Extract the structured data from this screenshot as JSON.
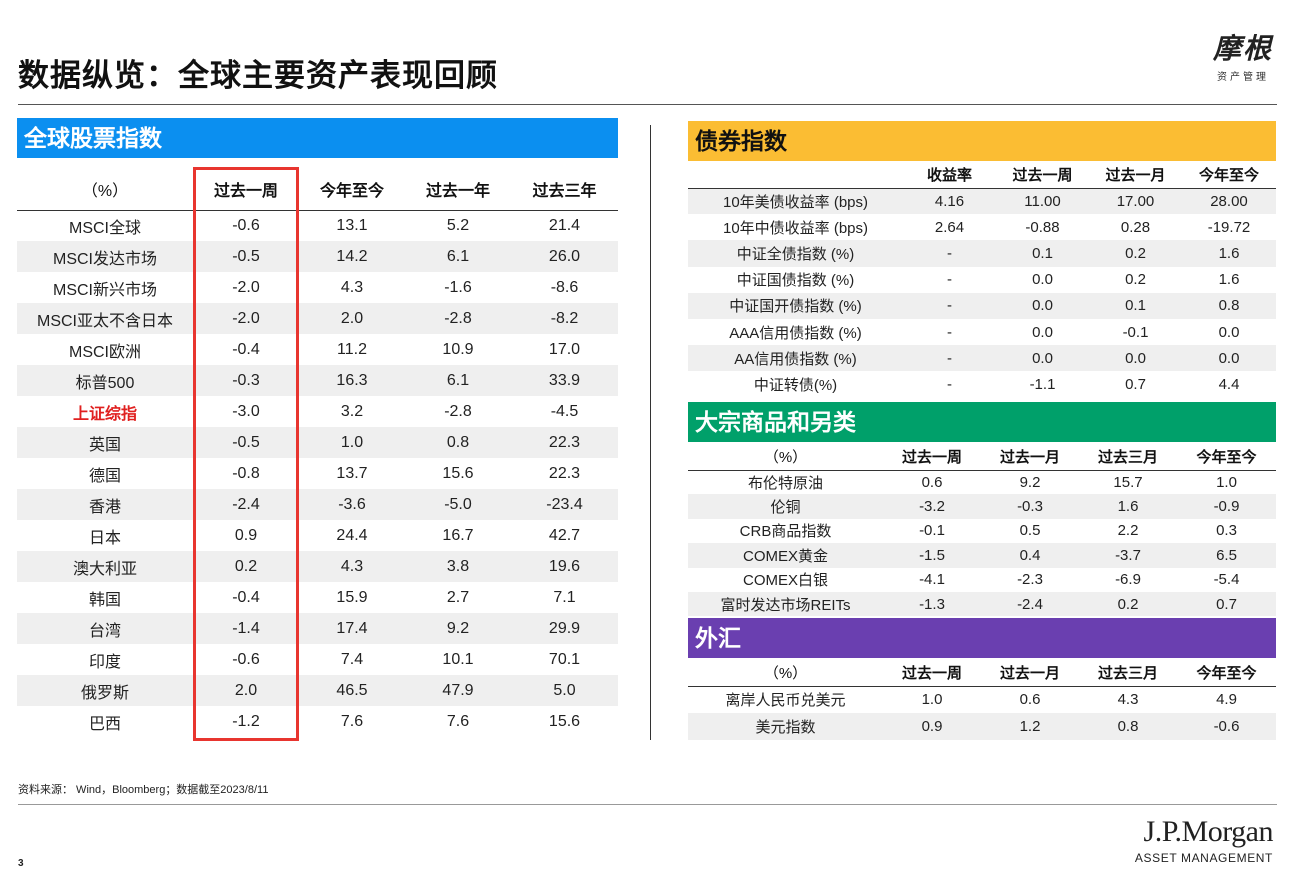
{
  "header": {
    "title": "数据纵览：全球主要资产表现回顾",
    "logo_main": "摩根",
    "logo_sub": "资产管理"
  },
  "equity": {
    "section_title": "全球股票指数",
    "columns": [
      "（%）",
      "过去一周",
      "今年至今",
      "过去一年",
      "过去三年"
    ],
    "rows": [
      {
        "name": "MSCI全球",
        "v": [
          "-0.6",
          "13.1",
          "5.2",
          "21.4"
        ]
      },
      {
        "name": "MSCI发达市场",
        "v": [
          "-0.5",
          "14.2",
          "6.1",
          "26.0"
        ]
      },
      {
        "name": "MSCI新兴市场",
        "v": [
          "-2.0",
          "4.3",
          "-1.6",
          "-8.6"
        ]
      },
      {
        "name": "MSCI亚太不含日本",
        "v": [
          "-2.0",
          "2.0",
          "-2.8",
          "-8.2"
        ]
      },
      {
        "name": "MSCI欧洲",
        "v": [
          "-0.4",
          "11.2",
          "10.9",
          "17.0"
        ]
      },
      {
        "name": "标普500",
        "v": [
          "-0.3",
          "16.3",
          "6.1",
          "33.9"
        ]
      },
      {
        "name": "上证综指",
        "v": [
          "-3.0",
          "3.2",
          "-2.8",
          "-4.5"
        ],
        "highlight": true
      },
      {
        "name": "英国",
        "v": [
          "-0.5",
          "1.0",
          "0.8",
          "22.3"
        ]
      },
      {
        "name": "德国",
        "v": [
          "-0.8",
          "13.7",
          "15.6",
          "22.3"
        ]
      },
      {
        "name": "香港",
        "v": [
          "-2.4",
          "-3.6",
          "-5.0",
          "-23.4"
        ]
      },
      {
        "name": "日本",
        "v": [
          "0.9",
          "24.4",
          "16.7",
          "42.7"
        ]
      },
      {
        "name": "澳大利亚",
        "v": [
          "0.2",
          "4.3",
          "3.8",
          "19.6"
        ]
      },
      {
        "name": "韩国",
        "v": [
          "-0.4",
          "15.9",
          "2.7",
          "7.1"
        ]
      },
      {
        "name": "台湾",
        "v": [
          "-1.4",
          "17.4",
          "9.2",
          "29.9"
        ]
      },
      {
        "name": "印度",
        "v": [
          "-0.6",
          "7.4",
          "10.1",
          "70.1"
        ]
      },
      {
        "name": "俄罗斯",
        "v": [
          "2.0",
          "46.5",
          "47.9",
          "5.0"
        ]
      },
      {
        "name": "巴西",
        "v": [
          "-1.2",
          "7.6",
          "7.6",
          "15.6"
        ]
      }
    ]
  },
  "bonds": {
    "section_title": "债券指数",
    "columns": [
      "",
      "收益率",
      "过去一周",
      "过去一月",
      "今年至今"
    ],
    "rows": [
      {
        "name": "10年美债收益率 (bps)",
        "v": [
          "4.16",
          "11.00",
          "17.00",
          "28.00"
        ]
      },
      {
        "name": "10年中债收益率 (bps)",
        "v": [
          "2.64",
          "-0.88",
          "0.28",
          "-19.72"
        ]
      },
      {
        "name": "中证全债指数 (%)",
        "v": [
          "-",
          "0.1",
          "0.2",
          "1.6"
        ]
      },
      {
        "name": "中证国债指数 (%)",
        "v": [
          "-",
          "0.0",
          "0.2",
          "1.6"
        ]
      },
      {
        "name": "中证国开债指数 (%)",
        "v": [
          "-",
          "0.0",
          "0.1",
          "0.8"
        ]
      },
      {
        "name": "AAA信用债指数 (%)",
        "v": [
          "-",
          "0.0",
          "-0.1",
          "0.0"
        ]
      },
      {
        "name": "AA信用债指数 (%)",
        "v": [
          "-",
          "0.0",
          "0.0",
          "0.0"
        ]
      },
      {
        "name": "中证转债(%)",
        "v": [
          "-",
          "-1.1",
          "0.7",
          "4.4"
        ]
      }
    ]
  },
  "commodities": {
    "section_title": "大宗商品和另类",
    "columns": [
      "（%）",
      "过去一周",
      "过去一月",
      "过去三月",
      "今年至今"
    ],
    "rows": [
      {
        "name": "布伦特原油",
        "v": [
          "0.6",
          "9.2",
          "15.7",
          "1.0"
        ]
      },
      {
        "name": "伦铜",
        "v": [
          "-3.2",
          "-0.3",
          "1.6",
          "-0.9"
        ]
      },
      {
        "name": "CRB商品指数",
        "v": [
          "-0.1",
          "0.5",
          "2.2",
          "0.3"
        ]
      },
      {
        "name": "COMEX黄金",
        "v": [
          "-1.5",
          "0.4",
          "-3.7",
          "6.5"
        ]
      },
      {
        "name": "COMEX白银",
        "v": [
          "-4.1",
          "-2.3",
          "-6.9",
          "-5.4"
        ]
      },
      {
        "name": "富时发达市场REITs",
        "v": [
          "-1.3",
          "-2.4",
          "0.2",
          "0.7"
        ]
      }
    ]
  },
  "fx": {
    "section_title": "外汇",
    "columns": [
      "（%）",
      "过去一周",
      "过去一月",
      "过去三月",
      "今年至今"
    ],
    "rows": [
      {
        "name": "离岸人民币兑美元",
        "v": [
          "1.0",
          "0.6",
          "4.3",
          "4.9"
        ]
      },
      {
        "name": "美元指数",
        "v": [
          "0.9",
          "1.2",
          "0.8",
          "-0.6"
        ]
      }
    ]
  },
  "footer": {
    "source": "资料来源： Wind，Bloomberg；数据截至2023/8/11",
    "page_number": "3",
    "brand_main": "J.P.Morgan",
    "brand_sub": "ASSET MANAGEMENT"
  }
}
